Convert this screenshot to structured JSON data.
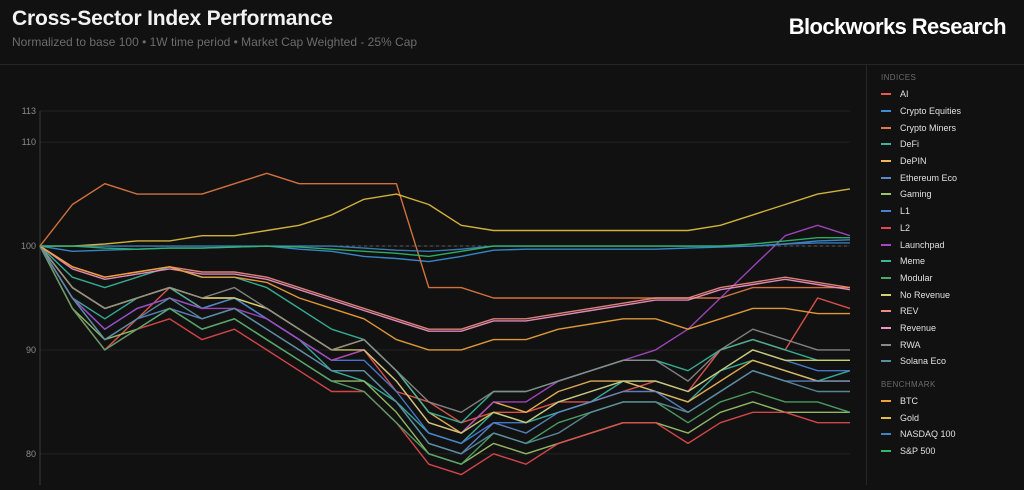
{
  "header": {
    "title": "Cross-Sector Index Performance",
    "subtitle": "Normalized to base 100 • 1W time period • Market Cap Weighted - 25% Cap",
    "brand": "Blockworks Research"
  },
  "legend": {
    "indices_heading": "INDICES",
    "benchmark_heading": "BENCHMARK"
  },
  "chart_data": {
    "type": "line",
    "xlabel": "",
    "ylabel": "",
    "ylim": [
      77,
      113
    ],
    "yticks": [
      80,
      90,
      100,
      110,
      113
    ],
    "baseline": 100,
    "grid": true,
    "legend_position": "right",
    "x": [
      0,
      0.04,
      0.08,
      0.12,
      0.16,
      0.2,
      0.24,
      0.28,
      0.32,
      0.36,
      0.4,
      0.44,
      0.48,
      0.52,
      0.56,
      0.6,
      0.64,
      0.68,
      0.72,
      0.76,
      0.8,
      0.84,
      0.88,
      0.92,
      0.96,
      1.0
    ],
    "series": [
      {
        "name": "AI",
        "group": "indices",
        "color": "#e8584f",
        "values": [
          100,
          94,
          90,
          93,
          96,
          94,
          95,
          93,
          91,
          89,
          90,
          86,
          85,
          83,
          84,
          84,
          85,
          85,
          86,
          87,
          86,
          90,
          91,
          90,
          95,
          94
        ]
      },
      {
        "name": "Crypto Equities",
        "group": "indices",
        "color": "#3a8fd8",
        "values": [
          100,
          99.5,
          99.6,
          99.7,
          99.8,
          99.8,
          99.9,
          100,
          99.7,
          99.5,
          99,
          98.8,
          98.5,
          99,
          99.6,
          99.7,
          99.7,
          99.7,
          99.7,
          99.7,
          99.8,
          99.9,
          100,
          100.2,
          100.5,
          100.6
        ]
      },
      {
        "name": "Crypto Miners",
        "group": "indices",
        "color": "#e27a3f",
        "values": [
          100,
          104,
          106,
          105,
          105,
          105,
          106,
          107,
          106,
          106,
          106,
          106,
          96,
          96,
          95,
          95,
          95,
          95,
          95,
          95,
          95,
          95,
          96,
          96,
          96,
          96
        ]
      },
      {
        "name": "DeFi",
        "group": "indices",
        "color": "#3bb5a0",
        "values": [
          100,
          95,
          93,
          95,
          96,
          94,
          95,
          93,
          91,
          88,
          87,
          85,
          82,
          81,
          84,
          83,
          84,
          85,
          87,
          86,
          85,
          88,
          89,
          88,
          87,
          88
        ]
      },
      {
        "name": "DePIN",
        "group": "indices",
        "color": "#f0b65a",
        "values": [
          100,
          96,
          94,
          95,
          96,
          95,
          95,
          94,
          92,
          90,
          91,
          88,
          84,
          82,
          85,
          84,
          86,
          87,
          87,
          86,
          85,
          87,
          89,
          88,
          87,
          87
        ]
      },
      {
        "name": "Ethereum Eco",
        "group": "indices",
        "color": "#5f88c9",
        "values": [
          100,
          95,
          91,
          93,
          94,
          93,
          94,
          92,
          90,
          88,
          88,
          85,
          81,
          80,
          83,
          82,
          84,
          85,
          86,
          86,
          84,
          86,
          88,
          87,
          87,
          87
        ]
      },
      {
        "name": "Gaming",
        "group": "indices",
        "color": "#9bc46a",
        "values": [
          100,
          94,
          91,
          92,
          94,
          92,
          93,
          91,
          89,
          87,
          87,
          84,
          80,
          79,
          81,
          80,
          81,
          82,
          83,
          83,
          82,
          84,
          85,
          84,
          84,
          84
        ]
      },
      {
        "name": "L1",
        "group": "indices",
        "color": "#4a7fd6",
        "values": [
          100,
          95,
          92,
          94,
          95,
          94,
          95,
          93,
          91,
          89,
          89,
          86,
          82,
          81,
          83,
          83,
          85,
          86,
          87,
          87,
          86,
          88,
          90,
          89,
          88,
          88
        ]
      },
      {
        "name": "L2",
        "group": "indices",
        "color": "#e2494e",
        "values": [
          100,
          94,
          90,
          92,
          93,
          91,
          92,
          90,
          88,
          86,
          86,
          83,
          79,
          78,
          80,
          79,
          81,
          82,
          83,
          83,
          81,
          83,
          84,
          84,
          83,
          83
        ]
      },
      {
        "name": "Launchpad",
        "group": "indices",
        "color": "#a646c4",
        "values": [
          100,
          95,
          92,
          94,
          95,
          94,
          94,
          93,
          91,
          89,
          90,
          87,
          83,
          82,
          85,
          85,
          87,
          88,
          89,
          90,
          92,
          95,
          98,
          101,
          102,
          101
        ]
      },
      {
        "name": "Meme",
        "group": "indices",
        "color": "#37b89b",
        "values": [
          100,
          97,
          96,
          97,
          98,
          97,
          97,
          96,
          94,
          92,
          91,
          88,
          84,
          83,
          86,
          86,
          87,
          88,
          89,
          89,
          88,
          90,
          91,
          90,
          89,
          89
        ]
      },
      {
        "name": "Modular",
        "group": "indices",
        "color": "#4fa56a",
        "values": [
          100,
          94,
          90,
          92,
          94,
          92,
          93,
          91,
          89,
          87,
          86,
          83,
          80,
          79,
          82,
          81,
          83,
          84,
          85,
          85,
          83,
          85,
          86,
          85,
          85,
          84
        ]
      },
      {
        "name": "No Revenue",
        "group": "indices",
        "color": "#d6d06d",
        "values": [
          100,
          96,
          94,
          95,
          96,
          95,
          95,
          94,
          92,
          90,
          90,
          87,
          83,
          82,
          84,
          83,
          85,
          86,
          87,
          87,
          86,
          88,
          90,
          89,
          89,
          89
        ]
      },
      {
        "name": "REV",
        "group": "indices",
        "color": "#ef8c7e",
        "values": [
          100,
          98,
          97,
          97.5,
          98,
          97.5,
          97.5,
          97,
          96,
          95,
          94,
          93,
          92,
          92,
          93,
          93,
          93.5,
          94,
          94.5,
          95,
          95,
          96,
          96.5,
          97,
          96.5,
          96
        ]
      },
      {
        "name": "Revenue",
        "group": "indices",
        "color": "#ef93c4",
        "values": [
          100,
          97.8,
          96.8,
          97.3,
          97.8,
          97.3,
          97.3,
          96.8,
          95.8,
          94.8,
          93.8,
          92.8,
          91.8,
          91.8,
          92.8,
          92.8,
          93.3,
          93.8,
          94.3,
          94.8,
          94.8,
          95.8,
          96.3,
          96.8,
          96.3,
          95.8
        ]
      },
      {
        "name": "RWA",
        "group": "indices",
        "color": "#8a8a8a",
        "values": [
          100,
          96,
          94,
          95,
          96,
          95,
          96,
          94,
          92,
          90,
          91,
          88,
          85,
          84,
          86,
          86,
          87,
          88,
          89,
          89,
          87,
          90,
          92,
          91,
          90,
          90
        ]
      },
      {
        "name": "Solana Eco",
        "group": "indices",
        "color": "#5b8e9d",
        "values": [
          100,
          95,
          91,
          93,
          95,
          93,
          94,
          92,
          90,
          88,
          88,
          85,
          81,
          80,
          82,
          81,
          82,
          84,
          85,
          85,
          84,
          86,
          88,
          87,
          86,
          86
        ]
      },
      {
        "name": "BTC",
        "group": "benchmark",
        "color": "#f0a23a",
        "values": [
          100,
          98,
          97,
          97.5,
          98,
          97,
          97,
          96.5,
          95,
          94,
          93,
          91,
          90,
          90,
          91,
          91,
          92,
          92.5,
          93,
          93,
          92,
          93,
          94,
          94,
          93.5,
          93.5
        ]
      },
      {
        "name": "Gold",
        "group": "benchmark",
        "color": "#e2bf3d",
        "values": [
          100,
          100,
          100.2,
          100.5,
          100.5,
          101,
          101,
          101.5,
          102,
          103,
          104.5,
          105,
          104,
          102,
          101.5,
          101.5,
          101.5,
          101.5,
          101.5,
          101.5,
          101.5,
          102,
          103,
          104,
          105,
          105.5
        ]
      },
      {
        "name": "NASDAQ 100",
        "group": "benchmark",
        "color": "#3e83c2",
        "values": [
          100,
          100,
          100,
          100,
          100,
          100,
          100,
          100,
          100,
          100,
          99.8,
          99.6,
          99.5,
          99.7,
          100,
          100,
          100,
          100,
          100,
          100,
          100,
          100,
          100,
          100.2,
          100.3,
          100.3
        ]
      },
      {
        "name": "S&P 500",
        "group": "benchmark",
        "color": "#2fb868",
        "values": [
          100,
          100,
          99.8,
          99.7,
          99.8,
          99.8,
          99.9,
          100,
          99.9,
          99.7,
          99.5,
          99.3,
          99,
          99.5,
          100,
          100,
          100,
          100,
          100,
          100,
          100,
          100,
          100.2,
          100.5,
          100.8,
          100.8
        ]
      }
    ]
  }
}
